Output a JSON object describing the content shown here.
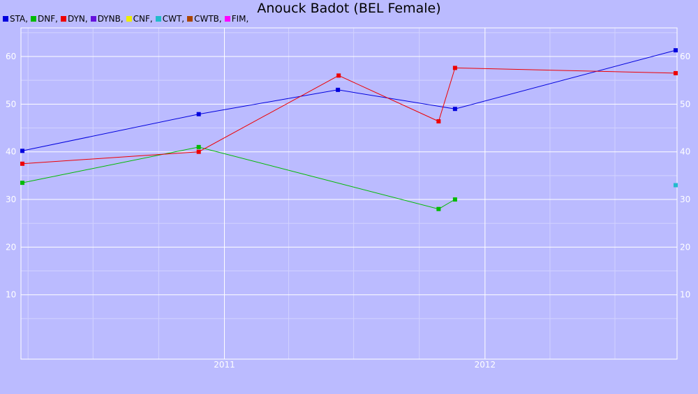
{
  "chart_data": {
    "type": "line",
    "title": "Anouck Badot (BEL Female)",
    "xlabel": "",
    "ylabel": "",
    "x_range": [
      "2010-03-22",
      "2012-09-26"
    ],
    "ylim": [
      -3.5,
      66
    ],
    "yticks": [
      10,
      20,
      30,
      40,
      50,
      60
    ],
    "xticks": [
      {
        "date": "2011-01-01",
        "label": "2011"
      },
      {
        "date": "2012-01-01",
        "label": "2012"
      }
    ],
    "legend": [
      {
        "label": "STA,",
        "color": "#0000dd"
      },
      {
        "label": "DNF,",
        "color": "#00bb00"
      },
      {
        "label": "DYN,",
        "color": "#ee0000"
      },
      {
        "label": "DYNB,",
        "color": "#6611dd"
      },
      {
        "label": "CNF,",
        "color": "#eeee00"
      },
      {
        "label": "CWT,",
        "color": "#22bbcc"
      },
      {
        "label": "CWTB,",
        "color": "#aa4400"
      },
      {
        "label": "FIM,",
        "color": "#ff00ff"
      }
    ],
    "series": [
      {
        "name": "STA",
        "color": "#0000dd",
        "points": [
          {
            "x": "2010-03-24",
            "y": 40.2
          },
          {
            "x": "2010-11-26",
            "y": 47.9
          },
          {
            "x": "2011-06-09",
            "y": 53
          },
          {
            "x": "2011-11-20",
            "y": 49
          },
          {
            "x": "2012-09-24",
            "y": 61.3
          }
        ]
      },
      {
        "name": "DNF",
        "color": "#00bb00",
        "points": [
          {
            "x": "2010-03-24",
            "y": 33.5
          },
          {
            "x": "2010-11-26",
            "y": 41
          },
          {
            "x": "2011-10-28",
            "y": 28
          },
          {
            "x": "2011-11-20",
            "y": 30
          }
        ]
      },
      {
        "name": "DYN",
        "color": "#ee0000",
        "points": [
          {
            "x": "2010-03-24",
            "y": 37.5
          },
          {
            "x": "2010-11-26",
            "y": 40
          },
          {
            "x": "2011-06-10",
            "y": 56
          },
          {
            "x": "2011-10-28",
            "y": 46.4
          },
          {
            "x": "2011-11-20",
            "y": 57.6
          },
          {
            "x": "2012-09-24",
            "y": 56.5
          }
        ]
      },
      {
        "name": "CWT",
        "color": "#22bbcc",
        "points": [
          {
            "x": "2012-09-24",
            "y": 33
          }
        ]
      }
    ]
  }
}
